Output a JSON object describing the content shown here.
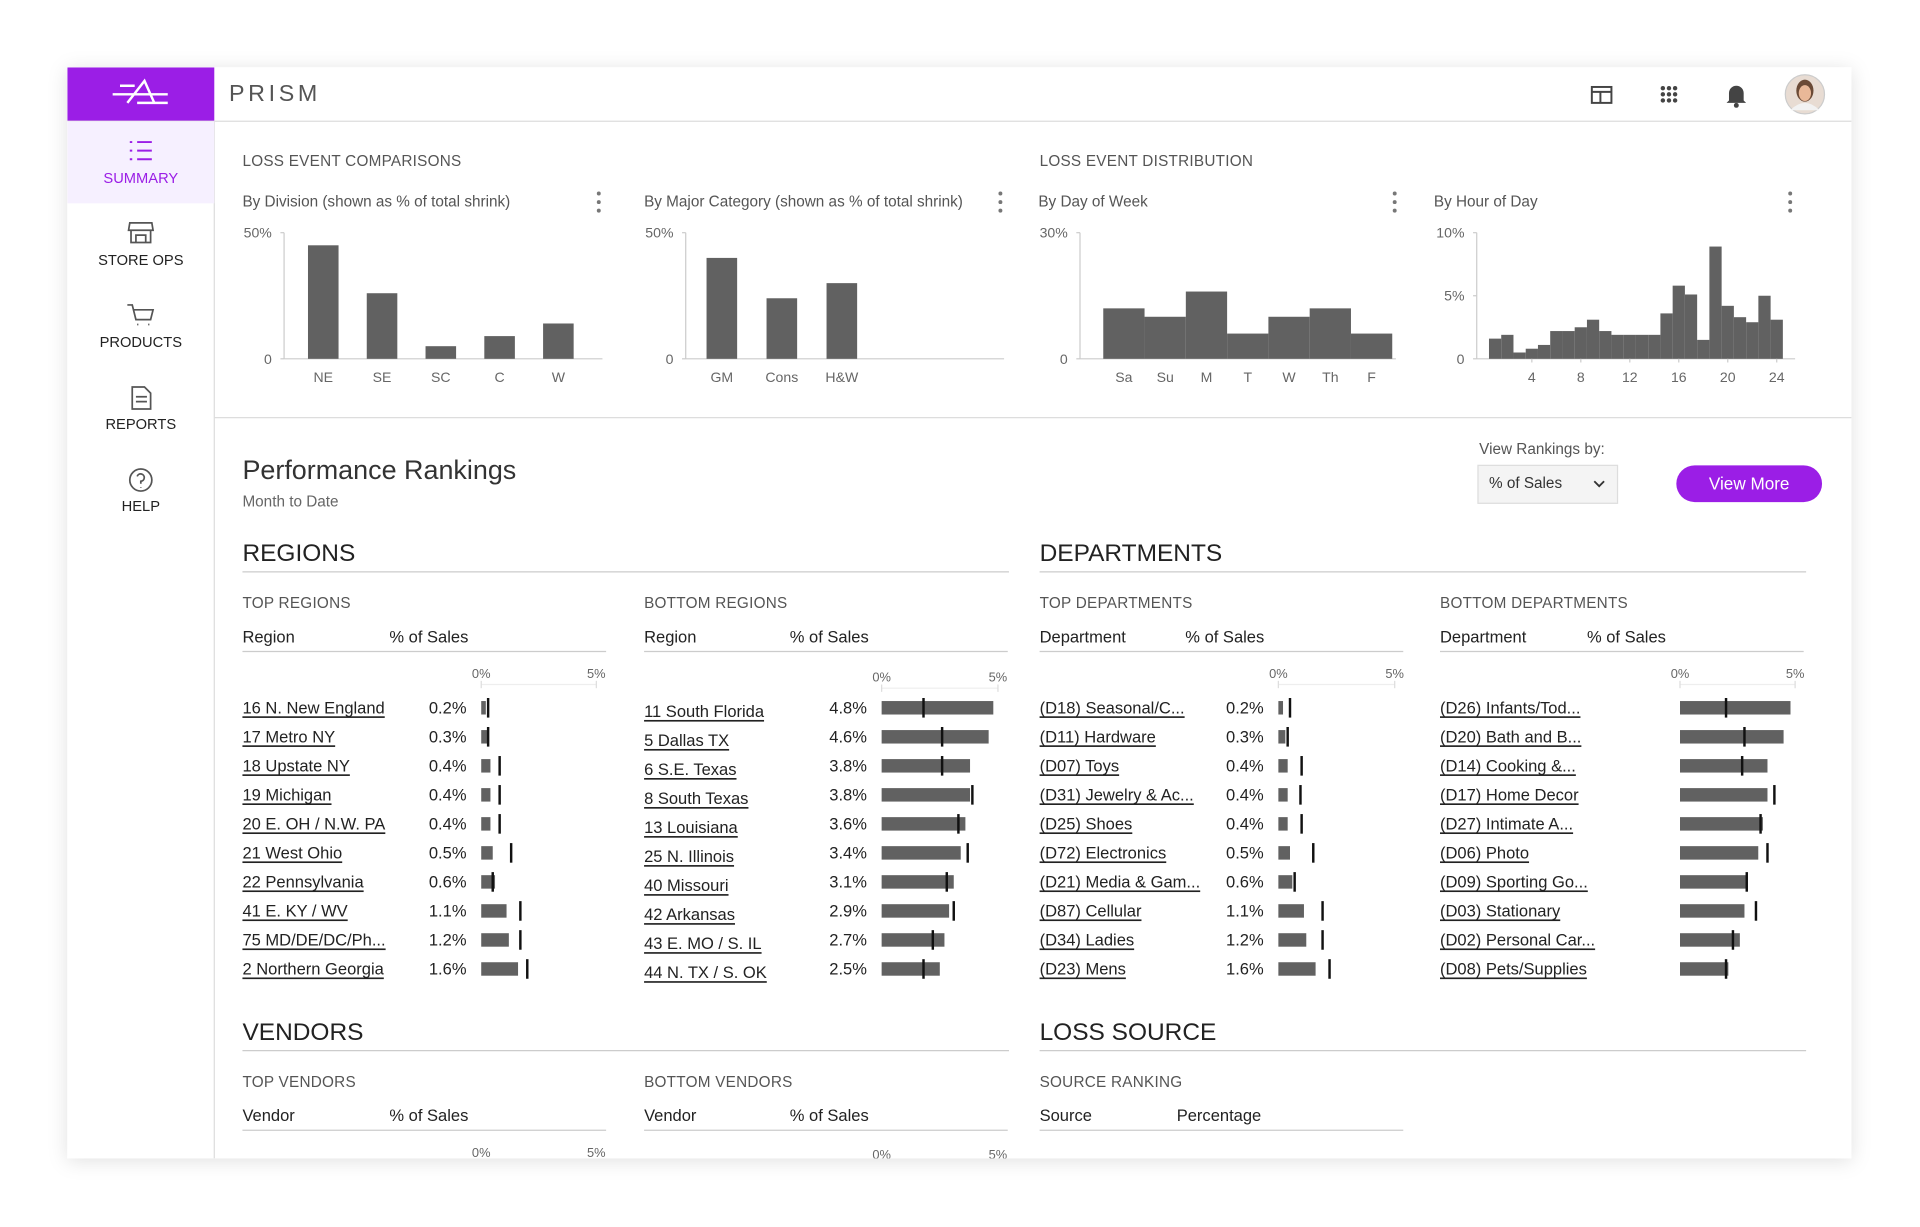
{
  "header": {
    "title": "PRISM"
  },
  "nav": [
    "SUMMARY",
    "STORE OPS",
    "PRODUCTS",
    "REPORTS",
    "HELP"
  ],
  "sections": {
    "comparisons": "LOSS EVENT COMPARISONS",
    "distribution": "LOSS EVENT DISTRIBUTION"
  },
  "chart_data": [
    {
      "type": "bar",
      "title": "By Division (shown as % of total shrink)",
      "categories": [
        "NE",
        "SE",
        "SC",
        "C",
        "W"
      ],
      "values": [
        45,
        26,
        5,
        9,
        14
      ],
      "color": "#616161",
      "ylim": [
        0,
        50
      ],
      "yticks": [
        0,
        {
          "value": 50,
          "label": "50%"
        }
      ]
    },
    {
      "type": "bar",
      "title": "By Major Category (shown as % of total shrink)",
      "categories": [
        "GM",
        "Cons",
        "H&W"
      ],
      "values": [
        40,
        24,
        30
      ],
      "color": "#616161",
      "ylim": [
        0,
        50
      ],
      "yticks": [
        0,
        {
          "value": 50,
          "label": "50%"
        }
      ]
    },
    {
      "type": "bar",
      "title": "By Day of Week",
      "categories": [
        "Sa",
        "Su",
        "M",
        "T",
        "W",
        "Th",
        "F"
      ],
      "values": [
        12,
        10,
        16,
        6,
        10,
        12,
        6
      ],
      "color": "#616161",
      "ylim": [
        0,
        30
      ],
      "yticks": [
        0,
        {
          "value": 30,
          "label": "30%"
        }
      ]
    },
    {
      "type": "histogram",
      "title": "By Hour of Day",
      "x": [
        1,
        2,
        3,
        4,
        5,
        6,
        7,
        8,
        9,
        10,
        11,
        12,
        13,
        14,
        15,
        16,
        17,
        18,
        19,
        20,
        21,
        22,
        23,
        24
      ],
      "values": [
        1.6,
        1.9,
        0.5,
        0.8,
        1.1,
        2.2,
        2.2,
        2.5,
        3.1,
        2.2,
        1.9,
        1.9,
        1.9,
        1.9,
        3.6,
        5.8,
        5.1,
        1.5,
        8.9,
        4.2,
        3.3,
        2.9,
        5.0,
        3.1
      ],
      "color": "#616161",
      "xlim": [
        -0.5,
        25.5
      ],
      "xticks": [
        4,
        8,
        12,
        16,
        20,
        24
      ],
      "ylim": [
        0,
        10
      ],
      "yticks": [
        0,
        {
          "value": 5,
          "label": "5%"
        },
        {
          "value": 10,
          "label": "10%"
        }
      ]
    }
  ],
  "rankings": {
    "title": "Performance Rankings",
    "subtitle": "Month to Date",
    "view_by_label": "View Rankings by:",
    "view_by_value": "% of Sales",
    "button": "View More",
    "groups": [
      {
        "title": "REGIONS",
        "tables": [
          {
            "label": "TOP REGIONS",
            "columns": [
              "Region",
              "% of Sales"
            ],
            "xlim": [
              0,
              5
            ],
            "ticks": [
              {
                "value": 0,
                "label": "0%"
              },
              {
                "value": 5,
                "label": "5%"
              }
            ],
            "rows": [
              "16 N. New England",
              "17 Metro NY",
              "18 Upstate NY",
              "19 Michigan",
              "20 E. OH / N.W. PA",
              "21 West Ohio",
              "22 Pennsylvania",
              "41 E. KY / WV",
              "75 MD/DE/DC/Ph...",
              "2 Northern Georgia"
            ],
            "values": [
              0.2,
              0.3,
              0.4,
              0.4,
              0.4,
              0.5,
              0.6,
              1.1,
              1.2,
              1.6
            ],
            "value_labels": [
              "0.2%",
              "0.3%",
              "0.4%",
              "0.4%",
              "0.4%",
              "0.5%",
              "0.6%",
              "1.1%",
              "1.2%",
              "1.6%"
            ],
            "targets": [
              0.3,
              0.3,
              0.8,
              0.8,
              0.8,
              1.3,
              0.5,
              1.7,
              1.7,
              2.0
            ]
          },
          {
            "label": "BOTTOM REGIONS",
            "columns": [
              "Region",
              "% of Sales"
            ],
            "xlim": [
              0,
              5
            ],
            "ticks": [
              {
                "value": 0,
                "label": "0%"
              },
              {
                "value": 5,
                "label": "5%"
              }
            ],
            "rows": [
              "11 South Florida",
              "5 Dallas TX",
              "6 S.E. Texas",
              "8 South Texas",
              "13 Louisiana",
              "25 N. Illinois",
              "40 Missouri",
              "42 Arkansas",
              "43 E. MO / S. IL",
              "44 N. TX / S. OK"
            ],
            "values": [
              4.8,
              4.6,
              3.8,
              3.8,
              3.6,
              3.4,
              3.1,
              2.9,
              2.7,
              2.5
            ],
            "value_labels": [
              "4.8%",
              "4.6%",
              "3.8%",
              "3.8%",
              "3.6%",
              "3.4%",
              "3.1%",
              "2.9%",
              "2.7%",
              "2.5%"
            ],
            "targets": [
              1.8,
              2.6,
              2.6,
              3.9,
              3.3,
              3.7,
              2.8,
              3.1,
              2.2,
              1.8
            ]
          }
        ]
      },
      {
        "title": "DEPARTMENTS",
        "tables": [
          {
            "label": "TOP DEPARTMENTS",
            "columns": [
              "Department",
              "% of Sales"
            ],
            "xlim": [
              0,
              5
            ],
            "ticks": [
              {
                "value": 0,
                "label": "0%"
              },
              {
                "value": 5,
                "label": "5%"
              }
            ],
            "rows": [
              "(D18) Seasonal/C...",
              "(D11) Hardware",
              "(D07) Toys",
              "(D31) Jewelry & Ac...",
              "(D25) Shoes",
              "(D72) Electronics",
              "(D21) Media & Gam...",
              "(D87) Cellular",
              "(D34) Ladies",
              "(D23) Mens"
            ],
            "values": [
              0.2,
              0.3,
              0.4,
              0.4,
              0.4,
              0.5,
              0.6,
              1.1,
              1.2,
              1.6
            ],
            "value_labels": [
              "0.2%",
              "0.3%",
              "0.4%",
              "0.4%",
              "0.4%",
              "0.5%",
              "0.6%",
              "1.1%",
              "1.2%",
              "1.6%"
            ],
            "targets": [
              0.5,
              0.4,
              1.0,
              0.95,
              1.0,
              1.5,
              0.7,
              1.9,
              1.9,
              2.2
            ]
          },
          {
            "label": "BOTTOM DEPARTMENTS",
            "columns": [
              "Department",
              "% of Sales"
            ],
            "xlim": [
              0,
              5
            ],
            "ticks": [
              {
                "value": 0,
                "label": "0%"
              },
              {
                "value": 5,
                "label": "5%"
              }
            ],
            "rows": [
              "(D26) Infants/Tod...",
              "(D20) Bath and B...",
              "(D14) Cooking &...",
              "(D17) Home Decor",
              "(D27) Intimate A...",
              "(D06) Photo",
              "(D09) Sporting Go...",
              "(D03) Stationary",
              "(D02) Personal Car...",
              "(D08) Pets/Supplies"
            ],
            "values": [
              4.8,
              4.5,
              3.8,
              3.8,
              3.6,
              3.4,
              2.9,
              2.8,
              2.6,
              2.1
            ],
            "targets": [
              2.0,
              2.8,
              2.7,
              4.1,
              3.5,
              3.8,
              2.9,
              3.3,
              2.3,
              2.0
            ]
          }
        ]
      },
      {
        "title": "VENDORS",
        "tables": [
          {
            "label": "TOP VENDORS",
            "columns": [
              "Vendor",
              "% of Sales"
            ],
            "xlim": [
              0,
              5
            ],
            "ticks": [
              {
                "value": 0,
                "label": "0%"
              },
              {
                "value": 5,
                "label": "5%"
              }
            ]
          },
          {
            "label": "BOTTOM VENDORS",
            "columns": [
              "Vendor",
              "% of Sales"
            ],
            "xlim": [
              0,
              5
            ],
            "ticks": [
              {
                "value": 0,
                "label": "0%"
              },
              {
                "value": 5,
                "label": "5%"
              }
            ]
          }
        ]
      },
      {
        "title": "LOSS SOURCE",
        "tables": [
          {
            "label": "SOURCE RANKING",
            "columns": [
              "Source",
              "Percentage"
            ]
          }
        ]
      }
    ]
  }
}
